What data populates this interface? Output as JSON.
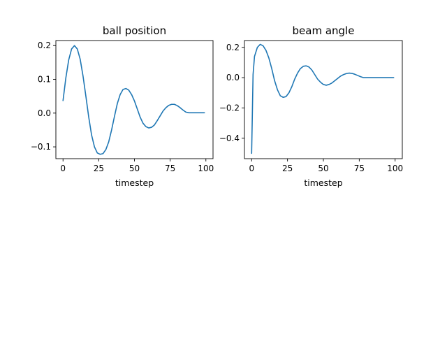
{
  "chart_data": [
    {
      "type": "line",
      "title": "ball position",
      "xlabel": "timestep",
      "ylabel": "",
      "xlim": [
        -5,
        105
      ],
      "ylim": [
        -0.135,
        0.215
      ],
      "xticks": [
        0,
        25,
        50,
        75,
        100
      ],
      "xtick_labels": [
        "0",
        "25",
        "50",
        "75",
        "100"
      ],
      "yticks": [
        -0.1,
        0.0,
        0.1,
        0.2
      ],
      "ytick_labels": [
        "−0.1",
        "0.0",
        "0.1",
        "0.2"
      ],
      "grid": false,
      "line_color": "#1f77b4",
      "series": [
        {
          "x": [
            0,
            2,
            4,
            6,
            8,
            10,
            12,
            14,
            16,
            18,
            20,
            22,
            24,
            26,
            28,
            30,
            32,
            34,
            36,
            38,
            40,
            42,
            44,
            46,
            48,
            50,
            52,
            54,
            56,
            58,
            60,
            62,
            64,
            66,
            68,
            70,
            72,
            74,
            76,
            78,
            80,
            82,
            84,
            86,
            88,
            90,
            92,
            94,
            96,
            98,
            99
          ],
          "y": [
            0.037,
            0.105,
            0.158,
            0.19,
            0.2,
            0.19,
            0.16,
            0.11,
            0.05,
            -0.012,
            -0.065,
            -0.1,
            -0.118,
            -0.122,
            -0.12,
            -0.108,
            -0.085,
            -0.05,
            -0.01,
            0.028,
            0.055,
            0.07,
            0.073,
            0.068,
            0.055,
            0.036,
            0.012,
            -0.012,
            -0.03,
            -0.04,
            -0.044,
            -0.042,
            -0.035,
            -0.022,
            -0.008,
            0.006,
            0.016,
            0.023,
            0.026,
            0.026,
            0.022,
            0.016,
            0.009,
            0.003,
            0.001,
            0.001,
            0.001,
            0.001,
            0.001,
            0.001,
            0.001
          ]
        }
      ]
    },
    {
      "type": "line",
      "title": "beam angle",
      "xlabel": "timestep",
      "ylabel": "",
      "xlim": [
        -5,
        105
      ],
      "ylim": [
        -0.535,
        0.245
      ],
      "xticks": [
        0,
        25,
        50,
        75,
        100
      ],
      "xtick_labels": [
        "0",
        "25",
        "50",
        "75",
        "100"
      ],
      "yticks": [
        -0.4,
        -0.2,
        0.0,
        0.2
      ],
      "ytick_labels": [
        "−0.4",
        "−0.2",
        "0.0",
        "0.2"
      ],
      "grid": false,
      "line_color": "#1f77b4",
      "series": [
        {
          "x": [
            0,
            1,
            2,
            4,
            6,
            8,
            10,
            12,
            14,
            16,
            18,
            20,
            22,
            24,
            26,
            28,
            30,
            32,
            34,
            36,
            38,
            40,
            42,
            44,
            46,
            48,
            50,
            52,
            54,
            56,
            58,
            60,
            62,
            64,
            66,
            68,
            70,
            72,
            74,
            76,
            78,
            80,
            82,
            84,
            86,
            88,
            90,
            92,
            94,
            96,
            99
          ],
          "y": [
            -0.5,
            0.02,
            0.14,
            0.2,
            0.22,
            0.21,
            0.18,
            0.13,
            0.06,
            -0.02,
            -0.08,
            -0.12,
            -0.13,
            -0.125,
            -0.1,
            -0.06,
            -0.01,
            0.03,
            0.06,
            0.075,
            0.078,
            0.07,
            0.05,
            0.02,
            -0.01,
            -0.03,
            -0.045,
            -0.05,
            -0.045,
            -0.035,
            -0.02,
            -0.005,
            0.01,
            0.02,
            0.027,
            0.03,
            0.028,
            0.022,
            0.014,
            0.006,
            0.0,
            0.0,
            0.0,
            0.0,
            0.0,
            0.0,
            0.0,
            0.0,
            0.0,
            0.0,
            0.0
          ]
        }
      ]
    }
  ]
}
